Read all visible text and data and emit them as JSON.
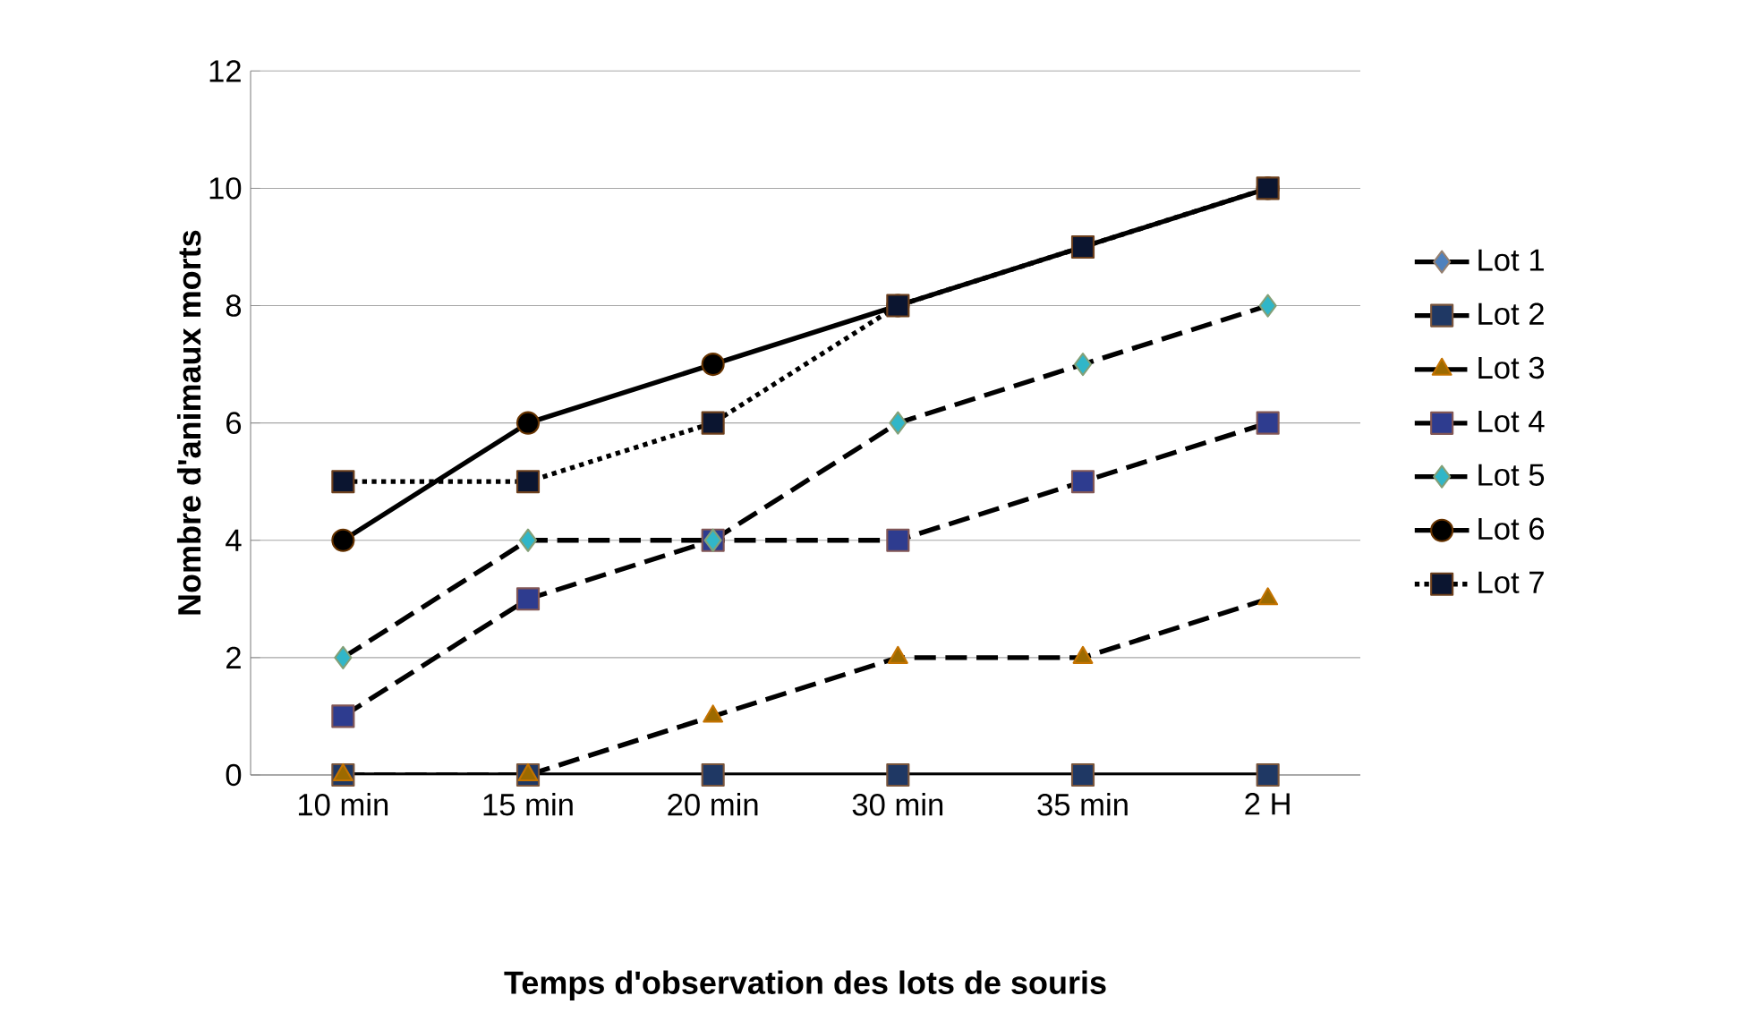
{
  "chart_data": {
    "type": "line",
    "xlabel": "Temps d'observation des lots de souris",
    "ylabel": "Nombre d'animaux morts",
    "categories": [
      "10 min",
      "15 min",
      "20 min",
      "30 min",
      "35 min",
      "2 H"
    ],
    "series": [
      {
        "name": "Lot 1",
        "color": "#4f81bd",
        "marker": "diamond",
        "line_style": "solid",
        "values": [
          null,
          null,
          null,
          null,
          null,
          null
        ]
      },
      {
        "name": "Lot 2",
        "color": "#1f3864",
        "marker": "square",
        "line_style": "solid",
        "values": [
          0,
          0,
          0,
          0,
          0,
          0
        ]
      },
      {
        "name": "Lot 3",
        "color": "#9c6a00",
        "marker": "triangle",
        "line_style": "dashed",
        "values": [
          0,
          0,
          1,
          2,
          2,
          3
        ]
      },
      {
        "name": "Lot 4",
        "color": "#2e3c8f",
        "marker": "square",
        "line_style": "dashed",
        "values": [
          1,
          3,
          4,
          4,
          5,
          6
        ]
      },
      {
        "name": "Lot 5",
        "color": "#31b6c8",
        "marker": "diamond",
        "line_style": "dashed",
        "values": [
          2,
          4,
          4,
          6,
          7,
          8
        ]
      },
      {
        "name": "Lot 6",
        "color": "#000000",
        "marker": "circle",
        "line_style": "solid",
        "values": [
          4,
          6,
          7,
          8,
          9,
          10
        ]
      },
      {
        "name": "Lot 7",
        "color": "#0b1530",
        "marker": "square",
        "line_style": "dotted",
        "values": [
          5,
          5,
          6,
          8,
          9,
          10
        ]
      }
    ],
    "ylim": [
      0,
      12
    ],
    "yticks": [
      0,
      2,
      4,
      6,
      8,
      10,
      12
    ],
    "grid": "y",
    "legend": "right"
  }
}
